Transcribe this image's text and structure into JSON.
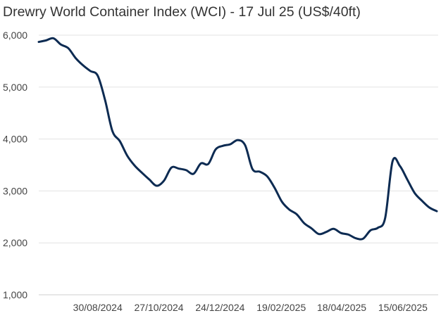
{
  "chart_data": {
    "type": "line",
    "title": "Drewry World Container Index (WCI) - 17 Jul 25 (US$/40ft)",
    "xlabel": "",
    "ylabel": "",
    "ylim": [
      1000,
      6000
    ],
    "yticks": [
      "1,000",
      "2,000",
      "3,000",
      "4,000",
      "5,000",
      "6,000"
    ],
    "ytick_values": [
      1000,
      2000,
      3000,
      4000,
      5000,
      6000
    ],
    "xticks": [
      "30/08/2024",
      "27/10/2024",
      "24/12/2024",
      "19/02/2025",
      "18/04/2025",
      "15/06/2025"
    ],
    "xtick_week_index": [
      8,
      16.3,
      24.6,
      32.9,
      41.1,
      49.4
    ],
    "grid": true,
    "color": "#0d2b52",
    "series": [
      {
        "name": "WCI",
        "frequency": "weekly",
        "values": [
          5870,
          5900,
          5940,
          5820,
          5750,
          5560,
          5420,
          5310,
          5220,
          4750,
          4150,
          3960,
          3680,
          3490,
          3350,
          3220,
          3100,
          3200,
          3450,
          3430,
          3400,
          3330,
          3530,
          3520,
          3800,
          3870,
          3900,
          3980,
          3880,
          3420,
          3370,
          3280,
          3060,
          2790,
          2640,
          2550,
          2380,
          2280,
          2170,
          2210,
          2270,
          2190,
          2160,
          2090,
          2080,
          2240,
          2290,
          2480,
          3570,
          3480,
          3220,
          2960,
          2810,
          2680,
          2610
        ]
      }
    ]
  }
}
